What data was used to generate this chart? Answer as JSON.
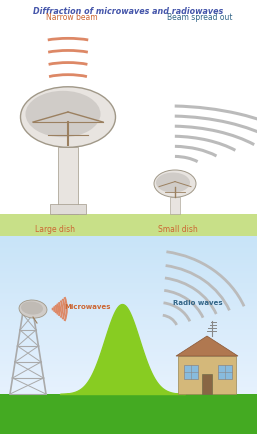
{
  "title": "Diffraction of microwaves and radiowaves",
  "title_color": "#4455aa",
  "title_fontsize": 5.8,
  "label_narrow": "Narrow beam",
  "label_spread": "Beam spread out",
  "label_large": "Large dish",
  "label_small": "Small dish",
  "label_micro": "Microwaves",
  "label_radio": "Radio waves",
  "label_color_orange": "#cc6633",
  "label_color_blue": "#336688",
  "dish_color": "#d0ccc8",
  "dish_highlight": "#e8e4e0",
  "dish_shadow": "#b0a898",
  "dish_edge": "#a09888",
  "strut_color": "#9b8060",
  "ground_green": "#c8e088",
  "wave_orange": "#dd8866",
  "wave_gray": "#bbbbbb",
  "wave_gray_dark": "#999999",
  "sky_top": "#ddeeff",
  "sky_bottom": "#eef5ff",
  "grass_green": "#44aa22",
  "hill_green": "#88cc22",
  "tower_color": "#aaaaaa",
  "house_wall": "#d4b87a",
  "house_roof": "#b07850",
  "window_color": "#88bbdd",
  "antenna_color": "#888888"
}
